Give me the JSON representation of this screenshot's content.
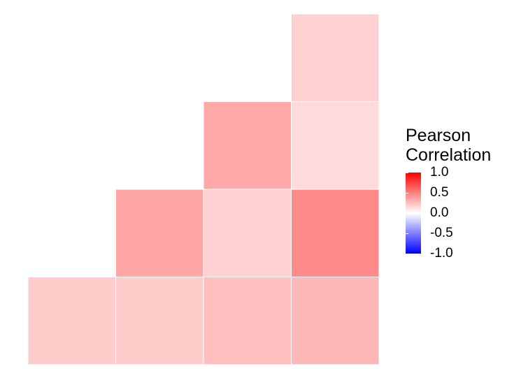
{
  "chart_data": {
    "type": "heatmap",
    "title": "",
    "xlabel": "",
    "ylabel": "",
    "colorscale": {
      "low": "#0000ff",
      "mid": "#ffffff",
      "high": "#ff0000",
      "range": [
        -1.0,
        1.0
      ]
    },
    "legend": {
      "title_lines": [
        "Pearson",
        "Correlation"
      ],
      "ticks": [
        "1.0",
        "0.5",
        "0.0",
        "-0.5",
        "-1.0"
      ],
      "tick_values": [
        1.0,
        0.5,
        0.0,
        -0.5,
        -1.0
      ],
      "placement": "right"
    },
    "cells": [
      {
        "row": 0,
        "col": 3,
        "value": 0.18
      },
      {
        "row": 1,
        "col": 2,
        "value": 0.34
      },
      {
        "row": 1,
        "col": 3,
        "value": 0.14
      },
      {
        "row": 2,
        "col": 1,
        "value": 0.35
      },
      {
        "row": 2,
        "col": 2,
        "value": 0.18
      },
      {
        "row": 2,
        "col": 3,
        "value": 0.46
      },
      {
        "row": 3,
        "col": 0,
        "value": 0.2
      },
      {
        "row": 3,
        "col": 1,
        "value": 0.2
      },
      {
        "row": 3,
        "col": 2,
        "value": 0.25
      },
      {
        "row": 3,
        "col": 3,
        "value": 0.28
      }
    ],
    "n_rows": 4,
    "n_cols": 4
  }
}
